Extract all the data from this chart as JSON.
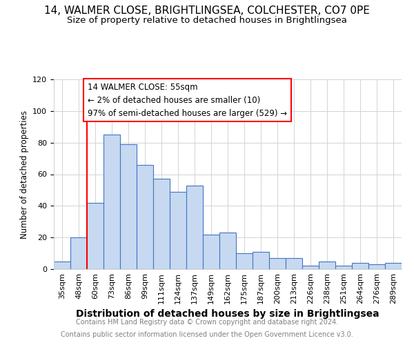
{
  "title_line1": "14, WALMER CLOSE, BRIGHTLINGSEA, COLCHESTER, CO7 0PE",
  "title_line2": "Size of property relative to detached houses in Brightlingsea",
  "xlabel": "Distribution of detached houses by size in Brightlingsea",
  "ylabel": "Number of detached properties",
  "footer_line1": "Contains HM Land Registry data © Crown copyright and database right 2024.",
  "footer_line2": "Contains public sector information licensed under the Open Government Licence v3.0.",
  "annotation_title": "14 WALMER CLOSE: 55sqm",
  "annotation_line1": "← 2% of detached houses are smaller (10)",
  "annotation_line2": "97% of semi-detached houses are larger (529) →",
  "categories": [
    "35sqm",
    "48sqm",
    "60sqm",
    "73sqm",
    "86sqm",
    "99sqm",
    "111sqm",
    "124sqm",
    "137sqm",
    "149sqm",
    "162sqm",
    "175sqm",
    "187sqm",
    "200sqm",
    "213sqm",
    "226sqm",
    "238sqm",
    "251sqm",
    "264sqm",
    "276sqm",
    "289sqm"
  ],
  "values": [
    5,
    20,
    42,
    85,
    79,
    66,
    57,
    49,
    53,
    22,
    23,
    10,
    11,
    7,
    7,
    2,
    5,
    2,
    4,
    3,
    4
  ],
  "bar_color": "#c6d9f0",
  "bar_edge_color": "#4472c4",
  "annotation_box_color": "white",
  "annotation_box_edge_color": "red",
  "red_line_x": 1.5,
  "ylim": [
    0,
    120
  ],
  "yticks": [
    0,
    20,
    40,
    60,
    80,
    100,
    120
  ],
  "background_color": "white",
  "grid_color": "#d3d3d3",
  "title1_fontsize": 11,
  "title2_fontsize": 9.5,
  "xlabel_fontsize": 10,
  "ylabel_fontsize": 8.5,
  "tick_fontsize": 8,
  "footer_fontsize": 7,
  "annotation_fontsize": 8.5
}
